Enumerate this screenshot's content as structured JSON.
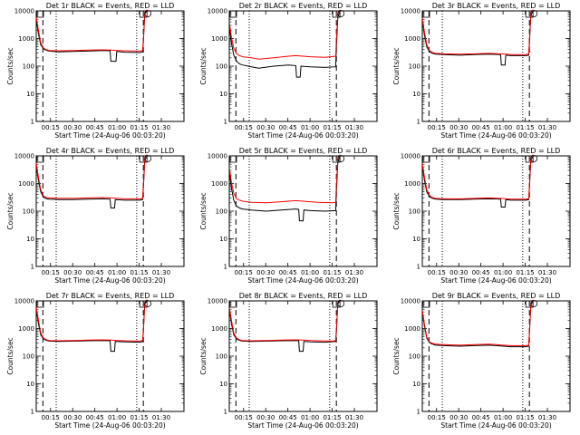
{
  "x_axis_label": "Start Time (24-Aug-06 00:03:20)",
  "y_axis_label": "Counts/sec",
  "x_tick_labels": [
    "00:15",
    "00:30",
    "00:45",
    "01:00",
    "01:15",
    "01:30"
  ],
  "y_tick_labels": [
    "1",
    "10",
    "100",
    "1000",
    "10000"
  ],
  "colors": {
    "events": "#000000",
    "lld": "#ff0000"
  },
  "chart_data": [
    {
      "type": "line",
      "title": "Det 1r BLACK = Events, RED = LLD",
      "xlim": [
        0,
        100
      ],
      "ylim": [
        1,
        10000
      ],
      "yscale": "log",
      "x_ticks": [
        9.67,
        24.67,
        39.67,
        54.67,
        69.67,
        84.67
      ],
      "markers": {
        "dashed": [
          4.5,
          72.5
        ],
        "dotted": [
          13.5,
          68.0
        ]
      },
      "series": [
        {
          "name": "Events",
          "x": [
            0,
            1.5,
            3,
            5,
            7,
            9,
            15,
            25,
            35,
            45,
            50,
            50.5,
            54,
            54.5,
            60,
            70,
            72,
            72.5,
            73.5,
            75
          ],
          "values": [
            5000,
            1500,
            600,
            420,
            370,
            350,
            330,
            340,
            350,
            370,
            360,
            150,
            150,
            340,
            320,
            310,
            330,
            800,
            8000,
            10000
          ]
        },
        {
          "name": "LLD",
          "x": [
            0,
            1.5,
            3,
            5,
            7,
            9,
            15,
            25,
            35,
            45,
            50,
            55,
            60,
            70,
            72,
            72.5,
            73.5,
            75
          ],
          "values": [
            6000,
            2000,
            700,
            450,
            390,
            370,
            360,
            370,
            380,
            390,
            380,
            370,
            360,
            350,
            370,
            900,
            9000,
            11000
          ]
        }
      ]
    },
    {
      "type": "line",
      "title": "Det 2r BLACK = Events, RED = LLD",
      "xlim": [
        0,
        100
      ],
      "ylim": [
        1,
        10000
      ],
      "yscale": "log",
      "x_ticks": [
        9.67,
        24.67,
        39.67,
        54.67,
        69.67,
        84.67
      ],
      "markers": {
        "dashed": [
          4.5,
          72.5
        ],
        "dotted": [
          13.5,
          68.0
        ]
      },
      "series": [
        {
          "name": "Events",
          "x": [
            0,
            1.5,
            3,
            5,
            7,
            9,
            15,
            20,
            30,
            40,
            45,
            45.5,
            48,
            48.5,
            55,
            65,
            72,
            72.5,
            73.5,
            75
          ],
          "values": [
            2500,
            700,
            250,
            150,
            120,
            110,
            95,
            85,
            100,
            110,
            105,
            40,
            40,
            100,
            95,
            90,
            95,
            500,
            6000,
            10000
          ]
        },
        {
          "name": "LLD",
          "x": [
            0,
            1.5,
            3,
            5,
            7,
            9,
            15,
            20,
            30,
            40,
            45,
            50,
            55,
            65,
            72,
            72.5,
            73.5,
            75
          ],
          "values": [
            4000,
            1100,
            450,
            280,
            240,
            220,
            200,
            180,
            200,
            230,
            240,
            230,
            220,
            210,
            230,
            900,
            8000,
            11000
          ]
        }
      ]
    },
    {
      "type": "line",
      "title": "Det 3r BLACK = Events, RED = LLD",
      "xlim": [
        0,
        100
      ],
      "ylim": [
        1,
        10000
      ],
      "yscale": "log",
      "x_ticks": [
        9.67,
        24.67,
        39.67,
        54.67,
        69.67,
        84.67
      ],
      "markers": {
        "dashed": [
          4.5,
          72.5
        ],
        "dotted": [
          13.5,
          68.0
        ]
      },
      "series": [
        {
          "name": "Events",
          "x": [
            0,
            1.5,
            3,
            5,
            7,
            9,
            15,
            25,
            35,
            45,
            53,
            53.5,
            56,
            56.5,
            60,
            70,
            72,
            72.5,
            73.5,
            75
          ],
          "values": [
            4500,
            1300,
            500,
            330,
            290,
            270,
            260,
            250,
            260,
            270,
            260,
            110,
            110,
            250,
            240,
            240,
            250,
            700,
            7000,
            10000
          ]
        },
        {
          "name": "LLD",
          "x": [
            0,
            1.5,
            3,
            5,
            7,
            9,
            15,
            25,
            35,
            45,
            53,
            57,
            60,
            70,
            72,
            72.5,
            73.5,
            75
          ],
          "values": [
            5500,
            1700,
            600,
            360,
            310,
            290,
            280,
            270,
            280,
            290,
            280,
            270,
            260,
            260,
            270,
            900,
            9000,
            11000
          ]
        }
      ]
    },
    {
      "type": "line",
      "title": "Det 4r BLACK = Events, RED = LLD",
      "xlim": [
        0,
        100
      ],
      "ylim": [
        1,
        10000
      ],
      "yscale": "log",
      "x_ticks": [
        9.67,
        24.67,
        39.67,
        54.67,
        69.67,
        84.67
      ],
      "markers": {
        "dashed": [
          4.5,
          72.5
        ],
        "dotted": [
          13.5,
          68.0
        ]
      },
      "series": [
        {
          "name": "Events",
          "x": [
            0,
            1.5,
            3,
            5,
            7,
            9,
            15,
            25,
            35,
            45,
            50,
            50.5,
            53,
            53.5,
            60,
            70,
            72,
            72.5,
            73.5,
            75
          ],
          "values": [
            4500,
            1300,
            500,
            320,
            280,
            270,
            260,
            260,
            270,
            280,
            270,
            130,
            130,
            260,
            250,
            250,
            260,
            700,
            7000,
            10000
          ]
        },
        {
          "name": "LLD",
          "x": [
            0,
            1.5,
            3,
            5,
            7,
            9,
            15,
            25,
            35,
            45,
            50,
            55,
            60,
            70,
            72,
            72.5,
            73.5,
            75
          ],
          "values": [
            5500,
            1700,
            600,
            350,
            310,
            300,
            290,
            290,
            300,
            310,
            300,
            290,
            280,
            280,
            290,
            900,
            9000,
            11000
          ]
        }
      ]
    },
    {
      "type": "line",
      "title": "Det 5r BLACK = Events, RED = LLD",
      "xlim": [
        0,
        100
      ],
      "ylim": [
        1,
        10000
      ],
      "yscale": "log",
      "x_ticks": [
        9.67,
        24.67,
        39.67,
        54.67,
        69.67,
        84.67
      ],
      "markers": {
        "dashed": [
          4.5,
          72.5
        ],
        "dotted": [
          13.5,
          68.0
        ]
      },
      "series": [
        {
          "name": "Events",
          "x": [
            0,
            1.5,
            3,
            5,
            7,
            9,
            15,
            25,
            35,
            45,
            47,
            47.5,
            50,
            50.5,
            55,
            65,
            72,
            72.5,
            73.5,
            75
          ],
          "values": [
            2500,
            700,
            250,
            150,
            130,
            120,
            110,
            100,
            110,
            120,
            115,
            45,
            45,
            110,
            105,
            100,
            105,
            500,
            6000,
            10000
          ]
        },
        {
          "name": "LLD",
          "x": [
            0,
            1.5,
            3,
            5,
            7,
            9,
            15,
            25,
            35,
            45,
            50,
            55,
            60,
            70,
            72,
            72.5,
            73.5,
            75
          ],
          "values": [
            4000,
            1100,
            450,
            280,
            250,
            230,
            210,
            200,
            220,
            240,
            230,
            220,
            210,
            200,
            210,
            900,
            8000,
            11000
          ]
        }
      ]
    },
    {
      "type": "line",
      "title": "Det 6r BLACK = Events, RED = LLD",
      "xlim": [
        0,
        100
      ],
      "ylim": [
        1,
        10000
      ],
      "yscale": "log",
      "x_ticks": [
        9.67,
        24.67,
        39.67,
        54.67,
        69.67,
        84.67
      ],
      "markers": {
        "dashed": [
          4.5,
          72.5
        ],
        "dotted": [
          13.5,
          68.0
        ]
      },
      "series": [
        {
          "name": "Events",
          "x": [
            0,
            1.5,
            3,
            5,
            7,
            9,
            15,
            25,
            35,
            45,
            53,
            53.5,
            56,
            56.5,
            60,
            70,
            72,
            72.5,
            73.5,
            75
          ],
          "values": [
            4500,
            1300,
            500,
            330,
            290,
            270,
            260,
            260,
            270,
            280,
            270,
            140,
            140,
            260,
            250,
            250,
            260,
            700,
            7000,
            10000
          ]
        },
        {
          "name": "LLD",
          "x": [
            0,
            1.5,
            3,
            5,
            7,
            9,
            15,
            25,
            35,
            45,
            53,
            57,
            60,
            70,
            72,
            72.5,
            73.5,
            75
          ],
          "values": [
            5500,
            1700,
            600,
            360,
            310,
            290,
            280,
            280,
            290,
            300,
            290,
            280,
            270,
            270,
            280,
            900,
            9000,
            11000
          ]
        }
      ]
    },
    {
      "type": "line",
      "title": "Det 7r BLACK = Events, RED = LLD",
      "xlim": [
        0,
        100
      ],
      "ylim": [
        1,
        10000
      ],
      "yscale": "log",
      "x_ticks": [
        9.67,
        24.67,
        39.67,
        54.67,
        69.67,
        84.67
      ],
      "markers": {
        "dashed": [
          4.5,
          72.5
        ],
        "dotted": [
          13.5,
          68.0
        ]
      },
      "series": [
        {
          "name": "Events",
          "x": [
            0,
            1.5,
            3,
            5,
            7,
            9,
            15,
            25,
            35,
            45,
            50,
            50.5,
            53,
            53.5,
            60,
            70,
            72,
            72.5,
            73.5,
            75
          ],
          "values": [
            5000,
            1500,
            600,
            420,
            370,
            350,
            340,
            350,
            360,
            370,
            360,
            150,
            150,
            340,
            330,
            320,
            340,
            800,
            8000,
            10000
          ]
        },
        {
          "name": "LLD",
          "x": [
            0,
            1.5,
            3,
            5,
            7,
            9,
            15,
            25,
            35,
            45,
            50,
            55,
            60,
            70,
            72,
            72.5,
            73.5,
            75
          ],
          "values": [
            6000,
            2000,
            700,
            450,
            390,
            370,
            360,
            370,
            380,
            390,
            380,
            370,
            360,
            350,
            370,
            900,
            9000,
            11000
          ]
        }
      ]
    },
    {
      "type": "line",
      "title": "Det 8r BLACK = Events, RED = LLD",
      "xlim": [
        0,
        100
      ],
      "ylim": [
        1,
        10000
      ],
      "yscale": "log",
      "x_ticks": [
        9.67,
        24.67,
        39.67,
        54.67,
        69.67,
        84.67
      ],
      "markers": {
        "dashed": [
          4.5,
          72.5
        ],
        "dotted": [
          13.5,
          68.0
        ]
      },
      "series": [
        {
          "name": "Events",
          "x": [
            0,
            1.5,
            3,
            5,
            7,
            9,
            15,
            25,
            35,
            45,
            47,
            47.5,
            50,
            50.5,
            55,
            65,
            72,
            72.5,
            73.5,
            75
          ],
          "values": [
            5000,
            1500,
            600,
            420,
            370,
            350,
            340,
            350,
            360,
            370,
            360,
            150,
            150,
            340,
            330,
            320,
            340,
            800,
            8000,
            10000
          ]
        },
        {
          "name": "LLD",
          "x": [
            0,
            1.5,
            3,
            5,
            7,
            9,
            15,
            25,
            35,
            45,
            50,
            55,
            60,
            70,
            72,
            72.5,
            73.5,
            75
          ],
          "values": [
            6000,
            2000,
            700,
            450,
            390,
            370,
            360,
            370,
            380,
            390,
            380,
            370,
            360,
            350,
            370,
            900,
            9000,
            11000
          ]
        }
      ]
    },
    {
      "type": "line",
      "title": "Det 9r BLACK = Events, RED = LLD",
      "xlim": [
        0,
        100
      ],
      "ylim": [
        1,
        10000
      ],
      "yscale": "log",
      "x_ticks": [
        9.67,
        24.67,
        39.67,
        54.67,
        69.67,
        84.67
      ],
      "markers": {
        "dashed": [
          4.5,
          72.5
        ],
        "dotted": [
          13.5,
          68.0
        ]
      },
      "series": [
        {
          "name": "Events",
          "x": [
            0,
            1.5,
            3,
            5,
            7,
            9,
            15,
            25,
            35,
            45,
            50,
            55,
            60,
            70,
            72,
            72.5,
            73.5,
            75
          ],
          "values": [
            4000,
            1200,
            450,
            300,
            270,
            250,
            240,
            230,
            240,
            250,
            240,
            230,
            220,
            220,
            230,
            700,
            7000,
            10000
          ]
        },
        {
          "name": "LLD",
          "x": [
            0,
            1.5,
            3,
            5,
            7,
            9,
            15,
            25,
            35,
            45,
            50,
            55,
            60,
            70,
            72,
            72.5,
            73.5,
            75
          ],
          "values": [
            4500,
            1400,
            500,
            320,
            290,
            270,
            260,
            250,
            260,
            270,
            260,
            250,
            240,
            240,
            250,
            800,
            8000,
            11000
          ]
        }
      ]
    }
  ]
}
